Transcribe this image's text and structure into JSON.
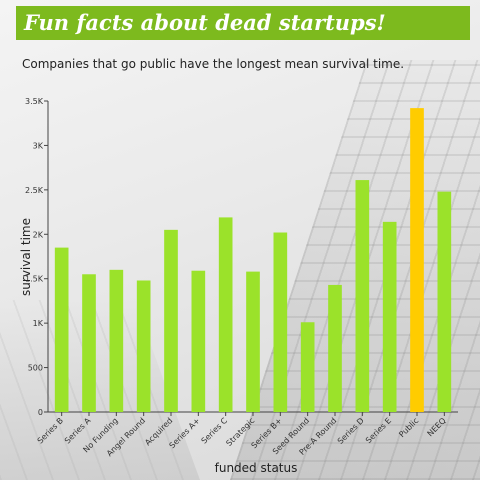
{
  "header": {
    "title": "Fun facts about dead startups!",
    "subtitle": "Companies that go public have the longest mean survival time."
  },
  "colors": {
    "banner": "#7dba1e",
    "bar": "#9be22a",
    "highlight": "#ffcc00"
  },
  "chart_data": {
    "type": "bar",
    "xlabel": "funded status",
    "ylabel": "survival time",
    "ylim": [
      0,
      3500
    ],
    "yticks": [
      0,
      500,
      1000,
      1500,
      2000,
      2500,
      3000,
      3500
    ],
    "ytick_labels": [
      "0",
      "500",
      "1K",
      "1.5K",
      "2K",
      "2.5K",
      "3K",
      "3.5K"
    ],
    "grid": false,
    "categories": [
      "Series B",
      "Series A",
      "No Funding",
      "Angel Round",
      "Acquired",
      "Series A+",
      "Series C",
      "Strategic",
      "Series B+",
      "Seed Round",
      "Pre-A Round",
      "Series D",
      "Series E",
      "Public",
      "NEEQ"
    ],
    "values": [
      1850,
      1550,
      1600,
      1480,
      2050,
      1590,
      2190,
      1580,
      2020,
      1010,
      1430,
      2610,
      2140,
      3420,
      2480
    ],
    "highlight_category": "Public"
  }
}
